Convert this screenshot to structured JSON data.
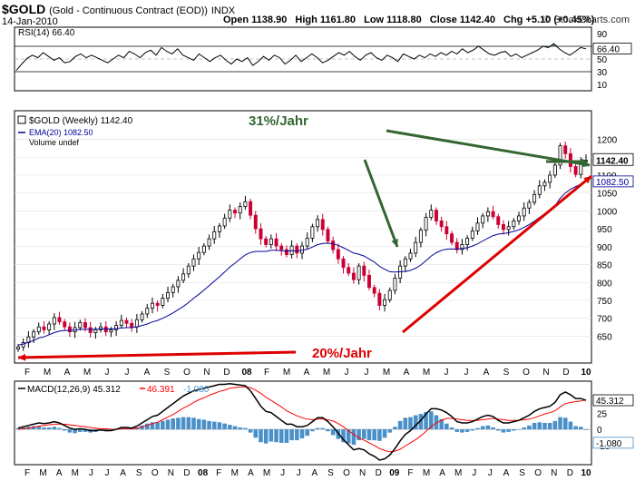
{
  "header": {
    "title": "$GOLD",
    "subtitle": "(Gold - Continuous Contract (EOD))",
    "exchange": "INDX",
    "date": "14-Jan-2010",
    "open": "Open 1138.90",
    "high": "High 1161.80",
    "low": "Low 1118.80",
    "close": "Close 1142.40",
    "change": "Chg +5.10 (+0.45%)",
    "copyright": "© StockCharts.com"
  },
  "colors": {
    "up_bar": "#000000",
    "down_bar": "#cc0033",
    "ema": "#000099",
    "macd_line": "#000000",
    "signal_line": "#ff0000",
    "histogram": "#4a90c8",
    "annotation_green": "#336633",
    "annotation_red": "#dd0000",
    "rsi_fill": "#5a8a5a"
  },
  "chart_data": [
    {
      "type": "line",
      "name": "RSI panel",
      "legend": "RSI(14) 66.40",
      "last_value": "66.40",
      "ylim": [
        0,
        100
      ],
      "ticks": [
        "90",
        "70",
        "50",
        "30",
        "10"
      ],
      "reference_lines": [
        70,
        30
      ],
      "values": [
        32,
        42,
        51,
        56,
        52,
        60,
        54,
        48,
        52,
        44,
        46,
        54,
        58,
        52,
        56,
        52,
        48,
        44,
        50,
        56,
        52,
        62,
        58,
        52,
        60,
        64,
        56,
        68,
        62,
        58,
        66,
        56,
        52,
        48,
        58,
        52,
        46,
        52,
        56,
        48,
        42,
        50,
        46,
        52,
        40,
        46,
        54,
        48,
        56,
        52,
        42,
        48,
        56,
        46,
        52,
        58,
        52,
        44,
        48,
        54,
        60,
        56,
        62,
        54,
        48,
        56,
        60,
        52,
        48,
        56,
        52,
        46,
        58,
        54,
        50,
        56,
        52,
        58,
        54,
        60,
        56,
        62,
        58,
        66,
        60,
        64,
        70,
        64,
        58,
        56,
        60,
        62,
        54,
        58,
        52,
        56,
        60,
        64,
        70,
        68,
        74,
        66,
        60,
        56,
        62,
        68,
        66
      ]
    },
    {
      "type": "candlestick",
      "name": "Price panel",
      "legend_main": "$GOLD (Weekly) 1142.40",
      "legend_ema": "EMA(20) 1082.50",
      "legend_volume": "Volume undef",
      "last_close_label": "1142.40",
      "ema_label": "1082.50",
      "ylim": [
        575,
        1280
      ],
      "y_ticks": [
        "1200",
        "1150",
        "1100",
        "1050",
        "1000",
        "950",
        "900",
        "850",
        "800",
        "750",
        "700",
        "650"
      ],
      "x_labels": [
        "F",
        "M",
        "A",
        "M",
        "J",
        "J",
        "A",
        "S",
        "O",
        "N",
        "D",
        "08",
        "F",
        "M",
        "A",
        "M",
        "J",
        "J",
        "M",
        "A",
        "M",
        "J",
        "J",
        "A",
        "S",
        "O",
        "N",
        "D",
        "10"
      ],
      "closes": [
        620,
        632,
        648,
        662,
        676,
        668,
        684,
        702,
        690,
        676,
        662,
        674,
        688,
        674,
        660,
        668,
        676,
        662,
        668,
        680,
        694,
        686,
        676,
        696,
        712,
        728,
        742,
        736,
        756,
        772,
        788,
        806,
        824,
        846,
        866,
        884,
        902,
        922,
        942,
        958,
        980,
        1002,
        994,
        1012,
        1026,
        988,
        950,
        922,
        906,
        922,
        902,
        892,
        878,
        902,
        882,
        902,
        924,
        956,
        976,
        948,
        916,
        892,
        866,
        842,
        826,
        808,
        846,
        820,
        786,
        770,
        736,
        752,
        778,
        812,
        846,
        866,
        882,
        912,
        946,
        982,
        1002,
        972,
        956,
        936,
        912,
        892,
        906,
        924,
        944,
        966,
        986,
        998,
        984,
        962,
        948,
        956,
        972,
        986,
        1008,
        1024,
        1046,
        1070,
        1080,
        1100,
        1128,
        1182,
        1160,
        1124,
        1102,
        1138,
        1142
      ],
      "ema": [
        625,
        628,
        633,
        638,
        645,
        648,
        654,
        660,
        664,
        666,
        666,
        667,
        669,
        669,
        669,
        669,
        670,
        670,
        670,
        671,
        673,
        674,
        674,
        676,
        680,
        684,
        690,
        694,
        700,
        707,
        715,
        724,
        733,
        744,
        756,
        767,
        779,
        791,
        804,
        816,
        829,
        843,
        854,
        866,
        877,
        884,
        887,
        887,
        887,
        890,
        890,
        889,
        888,
        889,
        888,
        890,
        893,
        899,
        906,
        909,
        910,
        908,
        904,
        897,
        890,
        882,
        879,
        874,
        866,
        857,
        845,
        837,
        830,
        829,
        830,
        831,
        834,
        840,
        849,
        861,
        874,
        883,
        890,
        893,
        894,
        893,
        895,
        897,
        902,
        908,
        916,
        924,
        931,
        935,
        937,
        939,
        943,
        947,
        954,
        962,
        971,
        982,
        992,
        1002,
        1015,
        1035,
        1050,
        1061,
        1068,
        1075,
        1082
      ]
    },
    {
      "type": "line",
      "name": "MACD panel",
      "legend_macd": "MACD(12,26,9) 45.312",
      "legend_signal": "46.391",
      "legend_hist": "-1.080",
      "macd_label": "45.312",
      "hist_label": "-1.080",
      "ylim": [
        -55,
        75
      ],
      "y_ticks": [
        "25",
        "0",
        "-25"
      ],
      "x_labels": [
        "F",
        "M",
        "A",
        "M",
        "J",
        "J",
        "A",
        "S",
        "O",
        "N",
        "D",
        "08",
        "F",
        "M",
        "A",
        "M",
        "J",
        "J",
        "A",
        "S",
        "O",
        "N",
        "D",
        "09",
        "F",
        "M",
        "A",
        "M",
        "J",
        "J",
        "A",
        "S",
        "O",
        "N",
        "D",
        "10"
      ],
      "macd": [
        2,
        4,
        6,
        8,
        10,
        9,
        10,
        12,
        10,
        6,
        2,
        0,
        1,
        0,
        -2,
        -2,
        -1,
        -2,
        -2,
        0,
        3,
        3,
        2,
        5,
        10,
        15,
        20,
        22,
        28,
        34,
        40,
        46,
        52,
        56,
        60,
        62,
        64,
        66,
        68,
        70,
        70,
        71,
        70,
        69,
        68,
        60,
        48,
        36,
        28,
        26,
        20,
        14,
        8,
        8,
        4,
        4,
        6,
        12,
        18,
        18,
        12,
        4,
        -6,
        -16,
        -24,
        -32,
        -30,
        -32,
        -38,
        -42,
        -48,
        -46,
        -40,
        -30,
        -18,
        -8,
        -2,
        6,
        14,
        24,
        32,
        32,
        30,
        26,
        20,
        12,
        10,
        10,
        12,
        16,
        20,
        22,
        20,
        14,
        10,
        10,
        12,
        14,
        18,
        22,
        28,
        32,
        34,
        36,
        42,
        54,
        58,
        54,
        48,
        48,
        45
      ],
      "signal": [
        0,
        1,
        2,
        3,
        5,
        6,
        7,
        8,
        8,
        8,
        7,
        6,
        5,
        4,
        3,
        2,
        1,
        1,
        0,
        0,
        1,
        1,
        1,
        2,
        4,
        6,
        9,
        11,
        15,
        19,
        23,
        28,
        33,
        37,
        42,
        46,
        49,
        53,
        56,
        59,
        61,
        64,
        65,
        66,
        66,
        65,
        61,
        56,
        50,
        45,
        40,
        35,
        29,
        25,
        21,
        18,
        16,
        15,
        16,
        16,
        15,
        13,
        9,
        4,
        -2,
        -8,
        -13,
        -17,
        -21,
        -25,
        -30,
        -33,
        -35,
        -34,
        -31,
        -26,
        -21,
        -16,
        -10,
        -3,
        4,
        10,
        14,
        17,
        17,
        16,
        15,
        14,
        14,
        14,
        15,
        16,
        17,
        16,
        15,
        14,
        14,
        14,
        15,
        16,
        18,
        21,
        24,
        26,
        29,
        35,
        40,
        42,
        43,
        44,
        46
      ]
    }
  ],
  "annotations": {
    "label_31": "31%/Jahr",
    "label_20": "20%/Jahr"
  }
}
